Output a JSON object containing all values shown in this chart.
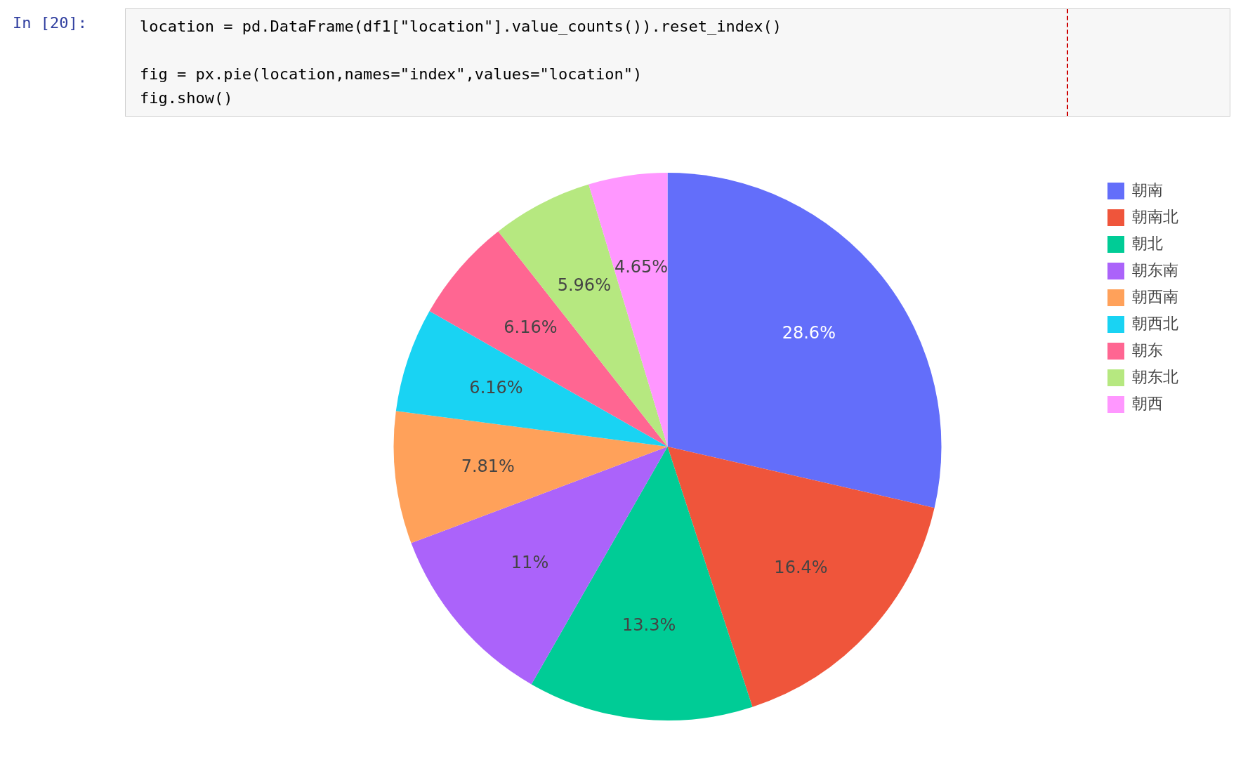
{
  "chart_data": {
    "type": "pie",
    "annotations": [
      "In [20]:",
      "location = pd.DataFrame(df1[\"location\"].value_counts()).reset_index()",
      "fig = px.pie(location,names=\"index\",values=\"location\")",
      "fig.show()"
    ],
    "categories": [
      "朝南",
      "朝南北",
      "朝北",
      "朝东南",
      "朝西南",
      "朝西北",
      "朝东",
      "朝东北",
      "朝西"
    ],
    "values": [
      28.6,
      16.4,
      13.3,
      11,
      7.81,
      6.16,
      6.16,
      5.96,
      4.65
    ],
    "value_labels": [
      "28.6%",
      "16.4%",
      "13.3%",
      "11%",
      "7.81%",
      "6.16%",
      "6.16%",
      "5.96%",
      "4.65%"
    ],
    "colors": [
      "#636efa",
      "#ef553b",
      "#00cc96",
      "#ab63fa",
      "#ffa15a",
      "#19d3f3",
      "#ff6692",
      "#b6e880",
      "#ff97ff"
    ],
    "legend": "top right"
  }
}
